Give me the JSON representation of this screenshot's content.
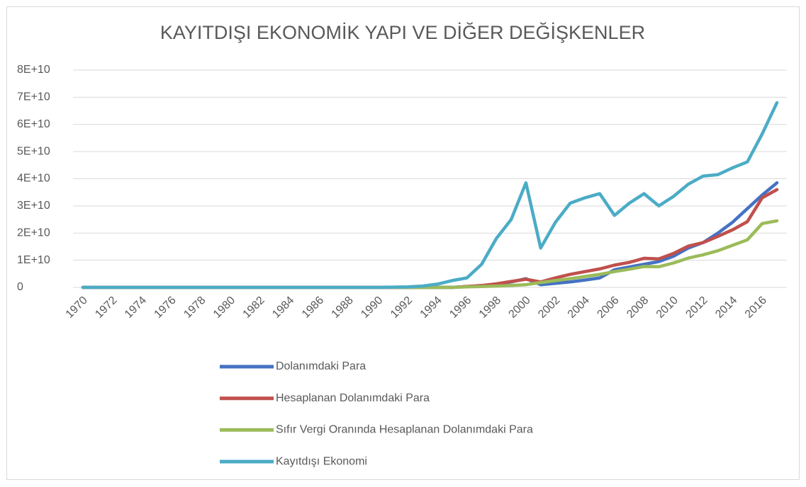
{
  "chart_data": {
    "type": "line",
    "title": "KAYITDIŞI EKONOMİK YAPI VE DİĞER DEĞİŞKENLER",
    "categories": [
      "1970",
      null,
      "1972",
      null,
      "1974",
      null,
      "1976",
      null,
      "1978",
      null,
      "1980",
      null,
      "1982",
      null,
      "1984",
      null,
      "1986",
      null,
      "1988",
      null,
      "1990",
      null,
      "1992",
      null,
      "1994",
      null,
      "1996",
      null,
      "1998",
      null,
      "2000",
      null,
      "2002",
      null,
      "2004",
      null,
      "2006",
      null,
      "2008",
      null,
      "2010",
      null,
      "2012",
      null,
      "2014",
      null,
      "2016",
      null
    ],
    "series": [
      {
        "name": "Dolanımdaki Para",
        "color": "#4472c4",
        "values": [
          0,
          0,
          0,
          0,
          0,
          0,
          0,
          0,
          0,
          0,
          0,
          0,
          0,
          0,
          0,
          0,
          0,
          0,
          0,
          0,
          0,
          0,
          0,
          0,
          0,
          0,
          300000000.0,
          600000000.0,
          1200000000.0,
          2000000000.0,
          3200000000.0,
          1000000000.0,
          1500000000.0,
          2000000000.0,
          2700000000.0,
          3500000000.0,
          6500000000.0,
          7500000000.0,
          8500000000.0,
          9500000000.0,
          11500000000.0,
          14500000000.0,
          16500000000.0,
          20000000000.0,
          24000000000.0,
          29000000000.0,
          34000000000.0,
          38500000000.0
        ]
      },
      {
        "name": "Hesaplanan Dolanımdaki Para",
        "color": "#c0504d",
        "values": [
          0,
          0,
          0,
          0,
          0,
          0,
          0,
          0,
          0,
          0,
          0,
          0,
          0,
          0,
          0,
          0,
          0,
          0,
          0,
          0,
          0,
          0,
          0,
          0,
          0,
          0,
          300000000.0,
          700000000.0,
          1300000000.0,
          2200000000.0,
          3000000000.0,
          2000000000.0,
          3500000000.0,
          4800000000.0,
          5800000000.0,
          6800000000.0,
          8200000000.0,
          9200000000.0,
          10700000000.0,
          10500000000.0,
          12500000000.0,
          15200000000.0,
          16500000000.0,
          18800000000.0,
          21200000000.0,
          24200000000.0,
          33000000000.0,
          36000000000.0
        ]
      },
      {
        "name": "Sıfır Vergi Oranında Hesaplanan Dolanımdaki Para",
        "color": "#9bbb59",
        "values": [
          0,
          0,
          0,
          0,
          0,
          0,
          0,
          0,
          0,
          0,
          0,
          0,
          0,
          0,
          0,
          0,
          0,
          0,
          0,
          0,
          0,
          0,
          0,
          0,
          0,
          0,
          200000000.0,
          300000000.0,
          500000000.0,
          700000000.0,
          1000000000.0,
          1800000000.0,
          2500000000.0,
          3200000000.0,
          4000000000.0,
          4800000000.0,
          5800000000.0,
          6700000000.0,
          7700000000.0,
          7600000000.0,
          9000000000.0,
          10800000000.0,
          12000000000.0,
          13500000000.0,
          15500000000.0,
          17500000000.0,
          23500000000.0,
          24500000000.0
        ]
      },
      {
        "name": "Kayıtdışı Ekonomi",
        "color": "#4bacc6",
        "values": [
          0,
          0,
          0,
          0,
          0,
          0,
          0,
          0,
          0,
          0,
          0,
          0,
          0,
          0,
          0,
          0,
          0,
          0,
          0,
          0,
          0,
          100000000.0,
          200000000.0,
          500000000.0,
          1200000000.0,
          2500000000.0,
          3500000000.0,
          8500000000.0,
          18000000000.0,
          25000000000.0,
          38500000000.0,
          14500000000.0,
          24000000000.0,
          31000000000.0,
          33000000000.0,
          34500000000.0,
          26500000000.0,
          31000000000.0,
          34500000000.0,
          30000000000.0,
          33500000000.0,
          38000000000.0,
          41000000000.0,
          41500000000.0,
          44000000000.0,
          46200000000.0,
          56500000000.0,
          68000000000.0
        ]
      }
    ],
    "ylim": [
      0,
      80000000000
    ],
    "yticks": [
      0,
      {
        "value": 10000000000,
        "label": "1E+10"
      },
      {
        "value": 20000000000,
        "label": "2E+10"
      },
      {
        "value": 30000000000,
        "label": "3E+10"
      },
      {
        "value": 40000000000,
        "label": "4E+10"
      },
      {
        "value": 50000000000,
        "label": "5E+10"
      },
      {
        "value": 60000000000,
        "label": "6E+10"
      },
      {
        "value": 70000000000,
        "label": "7E+10"
      },
      {
        "value": 80000000000,
        "label": "8E+10"
      }
    ],
    "grid": true,
    "legend": "bottom"
  }
}
